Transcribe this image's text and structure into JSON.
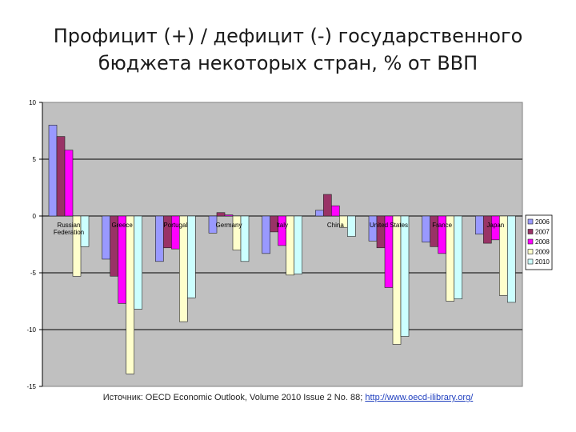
{
  "title": {
    "line1": "Профицит (+) / дефицит (-) государственного",
    "line2": "бюджета некоторых стран, % от ВВП"
  },
  "source": {
    "text": "Источник: OECD Economic Outlook, Volume 2010 Issue 2   No. 88; ",
    "link": "http://www.oecd-ilibrary.org/"
  },
  "chart_data": {
    "type": "bar",
    "ylim": [
      -15,
      10
    ],
    "yticks": [
      10,
      5,
      0,
      -5,
      -10,
      -15
    ],
    "grid": true,
    "legend_position": "right",
    "categories": [
      "Russian Federation",
      "Greece",
      "Portugal",
      "Germany",
      "Italy",
      "China",
      "United States",
      "France",
      "Japan"
    ],
    "category_labels": [
      [
        "Russian",
        "Federation"
      ],
      [
        "Greece"
      ],
      [
        "Portugal"
      ],
      [
        "Germany"
      ],
      [
        "Italy"
      ],
      [
        "China"
      ],
      [
        "United States"
      ],
      [
        "France"
      ],
      [
        "Japan"
      ]
    ],
    "series": [
      {
        "name": "2006",
        "color": "#9999ff",
        "values": [
          8.0,
          -3.8,
          -4.0,
          -1.5,
          -3.3,
          0.5,
          -2.2,
          -2.3,
          -1.6
        ]
      },
      {
        "name": "2007",
        "color": "#993366",
        "values": [
          7.0,
          -5.3,
          -2.8,
          0.3,
          -1.4,
          1.9,
          -2.8,
          -2.7,
          -2.4
        ]
      },
      {
        "name": "2008",
        "color": "#ff00ff",
        "values": [
          5.8,
          -7.7,
          -2.9,
          0.1,
          -2.6,
          0.9,
          -6.3,
          -3.3,
          -2.1
        ]
      },
      {
        "name": "2009",
        "color": "#ffffcc",
        "values": [
          -5.3,
          -13.9,
          -9.3,
          -3.0,
          -5.2,
          -1.0,
          -11.3,
          -7.5,
          -7.0
        ]
      },
      {
        "name": "2010",
        "color": "#ccffff",
        "values": [
          -2.7,
          -8.2,
          -7.2,
          -4.0,
          -5.1,
          -1.8,
          -10.6,
          -7.3,
          -7.6
        ]
      }
    ]
  }
}
